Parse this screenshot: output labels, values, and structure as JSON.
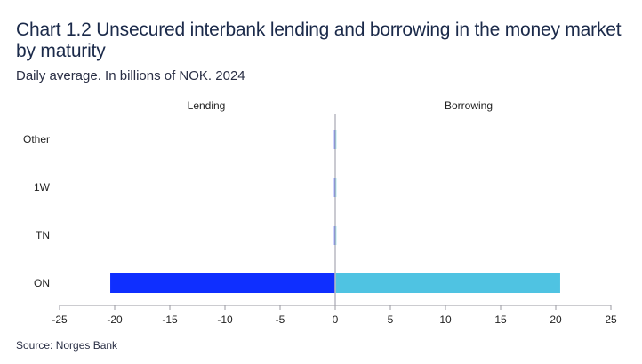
{
  "chart_data": {
    "type": "bar",
    "orientation": "horizontal",
    "title": "Chart 1.2 Unsecured interbank lending and borrowing in the money market by maturity",
    "subtitle": "Daily average. In billions of NOK. 2024",
    "source": "Source: Norges Bank",
    "panel_labels": {
      "left": "Lending",
      "right": "Borrowing"
    },
    "categories": [
      "Other",
      "1W",
      "TN",
      "ON"
    ],
    "series": [
      {
        "name": "Lending",
        "values": [
          0.0,
          0.0,
          0.0,
          -20.4
        ],
        "color": "#0f2fff"
      },
      {
        "name": "Borrowing",
        "values": [
          0.0,
          0.0,
          0.0,
          20.4
        ],
        "color": "#4fc3e2"
      }
    ],
    "x_ticks": [
      -25,
      -20,
      -15,
      -10,
      -5,
      0,
      5,
      10,
      15,
      20,
      25
    ],
    "xlim": [
      -25,
      25
    ],
    "grid": false
  }
}
